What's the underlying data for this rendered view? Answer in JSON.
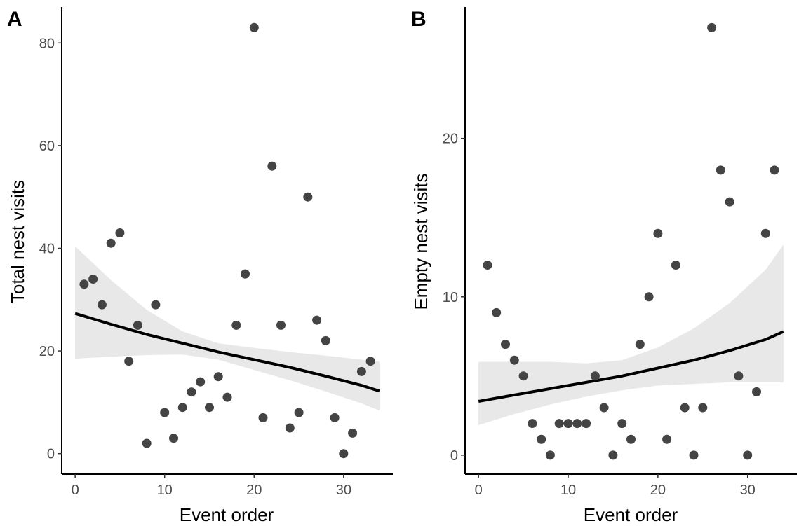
{
  "chart_data": [
    {
      "type": "scatter",
      "panel_label": "A",
      "xlabel": "Event order",
      "ylabel": "Total nest visits",
      "xlim": [
        -1.5,
        35.5
      ],
      "ylim": [
        -4,
        87
      ],
      "x_ticks": [
        0,
        10,
        20,
        30
      ],
      "y_ticks": [
        0,
        20,
        40,
        60,
        80
      ],
      "grid": false,
      "legend": "none",
      "points": {
        "x": [
          1,
          2,
          3,
          4,
          5,
          6,
          7,
          8,
          9,
          10,
          11,
          12,
          13,
          14,
          15,
          16,
          17,
          18,
          19,
          20,
          21,
          22,
          23,
          24,
          25,
          26,
          27,
          28,
          29,
          30,
          31,
          32,
          33
        ],
        "y": [
          33,
          34,
          29,
          41,
          43,
          18,
          25,
          2,
          29,
          8,
          3,
          9,
          12,
          14,
          9,
          15,
          11,
          25,
          35,
          83,
          7,
          56,
          25,
          5,
          8,
          50,
          26,
          22,
          7,
          0,
          4,
          16,
          18
        ]
      },
      "fit": {
        "x": [
          0,
          4,
          8,
          12,
          16,
          20,
          24,
          28,
          32,
          34
        ],
        "y": [
          27.3,
          25.2,
          23.2,
          21.5,
          19.8,
          18.3,
          16.8,
          15.1,
          13.3,
          12.2
        ],
        "ci_lower": [
          18.5,
          18.9,
          19.2,
          19.3,
          18.3,
          16.3,
          14.3,
          12.1,
          9.8,
          8.4
        ],
        "ci_upper": [
          40.4,
          33.8,
          28.0,
          23.8,
          21.5,
          20.6,
          19.8,
          19.1,
          18.3,
          17.9
        ]
      }
    },
    {
      "type": "scatter",
      "panel_label": "B",
      "xlabel": "Event order",
      "ylabel": "Empty nest visits",
      "xlim": [
        -1.5,
        35.5
      ],
      "ylim": [
        -1.2,
        28.3
      ],
      "x_ticks": [
        0,
        10,
        20,
        30
      ],
      "y_ticks": [
        0,
        10,
        20
      ],
      "grid": false,
      "legend": "none",
      "points": {
        "x": [
          1,
          2,
          3,
          4,
          5,
          6,
          7,
          8,
          9,
          10,
          11,
          12,
          13,
          14,
          15,
          16,
          17,
          18,
          19,
          20,
          21,
          22,
          23,
          24,
          25,
          26,
          27,
          28,
          29,
          30,
          31,
          32,
          33
        ],
        "y": [
          12,
          9,
          7,
          6,
          5,
          2,
          1,
          0,
          2,
          2,
          2,
          2,
          5,
          3,
          0,
          2,
          1,
          7,
          10,
          14,
          1,
          12,
          3,
          0,
          3,
          27,
          18,
          16,
          5,
          0,
          4,
          14,
          18
        ]
      },
      "fit": {
        "x": [
          0,
          4,
          8,
          12,
          16,
          20,
          24,
          28,
          32,
          34
        ],
        "y": [
          3.4,
          3.8,
          4.2,
          4.6,
          5.0,
          5.5,
          6.0,
          6.6,
          7.3,
          7.8
        ],
        "ci_lower": [
          1.9,
          2.6,
          3.2,
          3.7,
          4.1,
          4.4,
          4.5,
          4.6,
          4.6,
          4.6
        ],
        "ci_upper": [
          5.9,
          5.9,
          5.9,
          5.8,
          6.0,
          6.8,
          8.0,
          9.6,
          11.7,
          13.3
        ]
      }
    }
  ]
}
